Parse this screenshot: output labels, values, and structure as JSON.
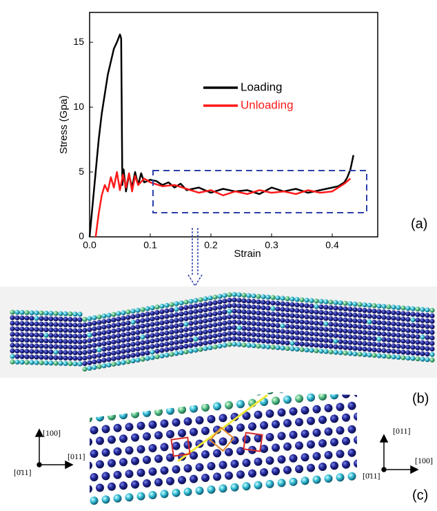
{
  "chart_data": {
    "type": "line",
    "x_label": "Strain",
    "y_label": "Stress (Gpa)",
    "xlim": [
      0,
      0.475
    ],
    "ylim": [
      0,
      17.3
    ],
    "xticks": [
      {
        "value": 0,
        "label": "0.0"
      },
      0.1,
      0.2,
      0.3,
      0.4
    ],
    "yticks": [
      0,
      5,
      10,
      15
    ],
    "legend": "upper center",
    "series": [
      {
        "name": "Loading",
        "color": "#000000",
        "x": [
          0,
          0.005,
          0.01,
          0.015,
          0.02,
          0.025,
          0.03,
          0.035,
          0.04,
          0.045,
          0.05,
          0.052,
          0.054,
          0.056,
          0.06,
          0.065,
          0.07,
          0.075,
          0.08,
          0.085,
          0.09,
          0.1,
          0.11,
          0.12,
          0.13,
          0.14,
          0.15,
          0.16,
          0.18,
          0.2,
          0.22,
          0.24,
          0.26,
          0.28,
          0.3,
          0.32,
          0.34,
          0.36,
          0.38,
          0.4,
          0.41,
          0.42,
          0.425,
          0.43,
          0.435
        ],
        "values": [
          0,
          2.5,
          5,
          7.5,
          9.5,
          11,
          12.5,
          13.5,
          14.5,
          15,
          15.6,
          15.3,
          4,
          5.2,
          3.5,
          4.8,
          3.8,
          5,
          4,
          4.9,
          4.2,
          4.4,
          4.3,
          4,
          4.2,
          3.8,
          4.1,
          3.6,
          3.8,
          3.4,
          3.7,
          3.5,
          3.6,
          3.3,
          3.8,
          3.5,
          3.7,
          3.4,
          3.6,
          3.8,
          3.9,
          4.2,
          4.6,
          5.2,
          6.3
        ]
      },
      {
        "name": "Unloading",
        "color": "#ff1a1a",
        "x": [
          0.01,
          0.015,
          0.02,
          0.025,
          0.03,
          0.035,
          0.04,
          0.045,
          0.05,
          0.055,
          0.06,
          0.065,
          0.07,
          0.075,
          0.08,
          0.09,
          0.1,
          0.12,
          0.14,
          0.16,
          0.18,
          0.2,
          0.22,
          0.24,
          0.26,
          0.28,
          0.3,
          0.32,
          0.34,
          0.36,
          0.38,
          0.4,
          0.41,
          0.42,
          0.43
        ],
        "values": [
          0,
          1.8,
          3.2,
          4,
          3.5,
          4.6,
          3.8,
          5,
          3.6,
          4.8,
          3.8,
          4.9,
          3.5,
          4.7,
          4,
          4.5,
          4.2,
          3.9,
          4,
          3.7,
          3.4,
          3.6,
          3.2,
          3.5,
          3.3,
          3.6,
          3.4,
          3.5,
          3.3,
          3.6,
          3.4,
          3.5,
          3.8,
          4.1,
          4.5
        ]
      }
    ]
  },
  "figure": {
    "panel_labels": [
      "(a)",
      "(b)",
      "(c)"
    ],
    "left_axes": {
      "up": "[100]",
      "right": "[011]",
      "out": "[0̄11]"
    },
    "right_axes": {
      "up": "[011]",
      "right": "[100]",
      "out": "[0̄11]"
    }
  }
}
